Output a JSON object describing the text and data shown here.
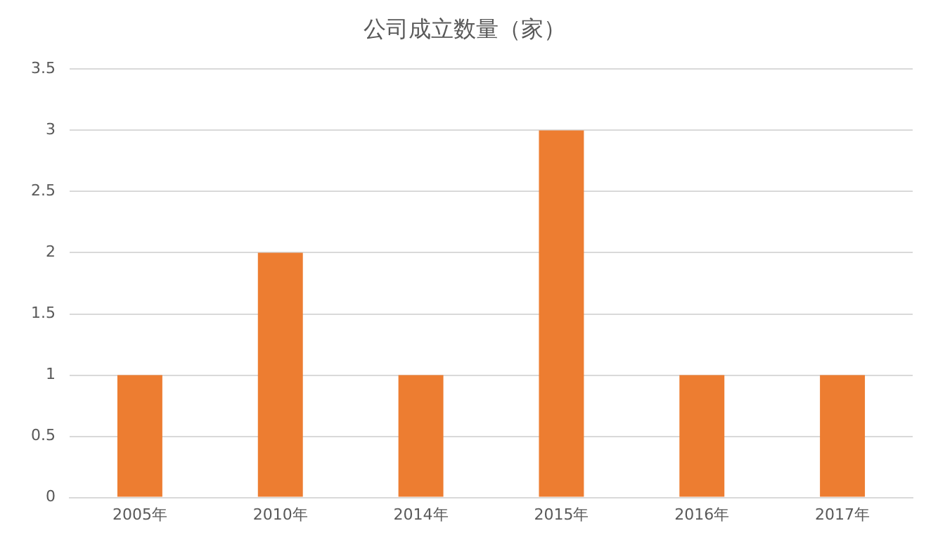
{
  "chart_data": {
    "type": "bar",
    "title": "公司成立数量（家）",
    "categories": [
      "2005年",
      "2010年",
      "2014年",
      "2015年",
      "2016年",
      "2017年"
    ],
    "values": [
      1,
      2,
      1,
      3,
      1,
      1
    ],
    "color": "#ed7d31",
    "ylim": [
      0,
      3.5
    ],
    "yticks": [
      0,
      0.5,
      1,
      1.5,
      2,
      2.5,
      3,
      3.5
    ],
    "grid": "y",
    "legend": false
  }
}
